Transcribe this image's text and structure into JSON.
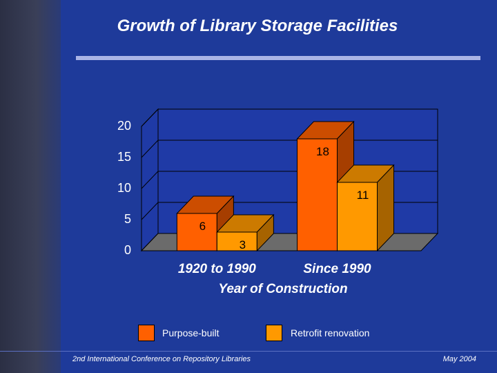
{
  "slide": {
    "title": "Growth of Library Storage Facilities",
    "footer_conference": "2nd International Conference on Repository Libraries",
    "footer_date": "May 2004"
  },
  "chart_data": {
    "type": "bar",
    "title": "Growth of Library Storage Facilities",
    "xlabel": "Year of Construction",
    "ylabel": "",
    "categories": [
      "1920 to 1990",
      "Since 1990"
    ],
    "series": [
      {
        "name": "Purpose-built",
        "values": [
          6,
          18
        ],
        "color": "#ff6000"
      },
      {
        "name": "Retrofit renovation",
        "values": [
          3,
          11
        ],
        "color": "#ff9900"
      }
    ],
    "yticks": [
      0,
      5,
      10,
      15,
      20
    ],
    "ylim": [
      0,
      20
    ],
    "legend_position": "bottom"
  },
  "colors": {
    "background": "#1e3a9a",
    "plot_wall": "#1f3aa6",
    "floor": "#6b6b6b"
  }
}
